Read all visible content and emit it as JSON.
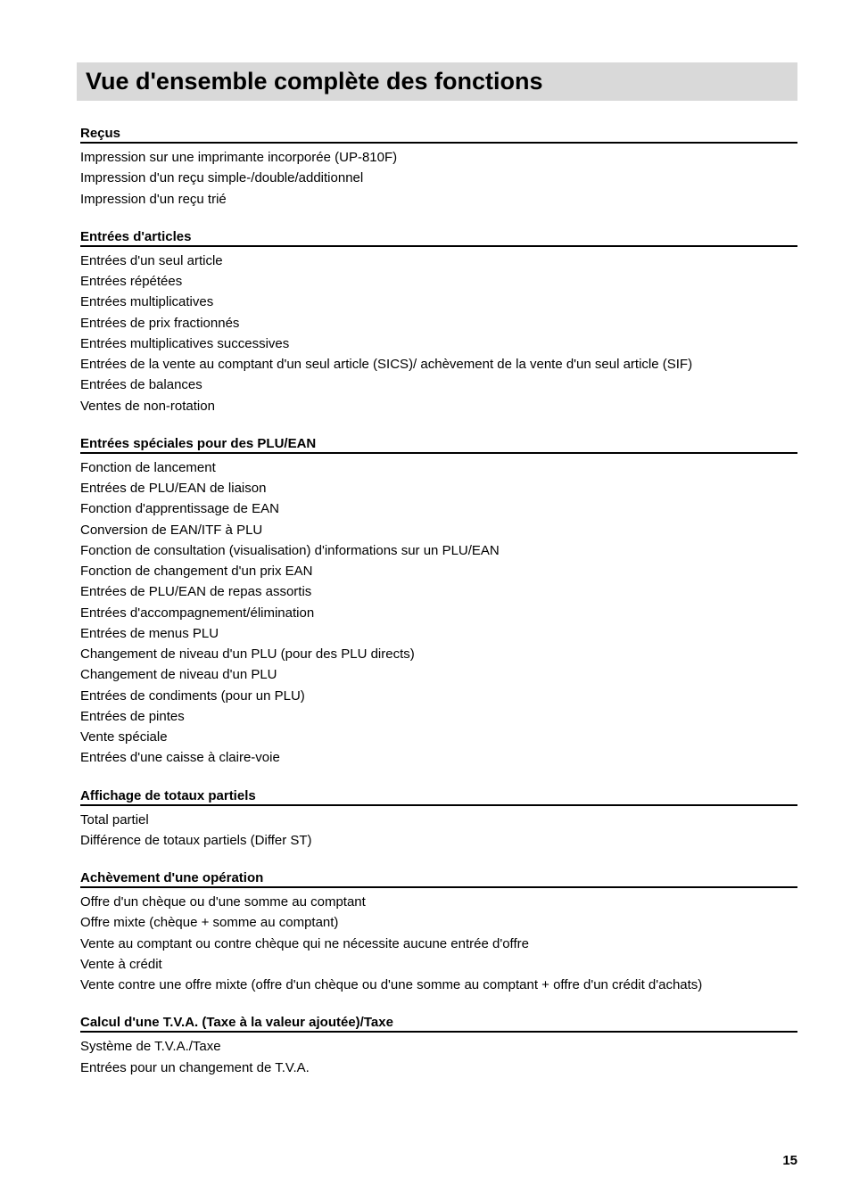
{
  "page_title": "Vue d'ensemble complète des fonctions",
  "page_number": "15",
  "style": {
    "title_bg": "#d9d9d9",
    "title_fontsize": 27,
    "heading_fontsize": 15,
    "body_fontsize": 15,
    "text_color": "#000000",
    "page_bg": "#ffffff",
    "heading_border_color": "#000000",
    "heading_border_width": 2
  },
  "sections": [
    {
      "heading": "Reçus",
      "lines": [
        "Impression sur une imprimante incorporée (UP-810F)",
        "Impression d'un reçu simple-/double/additionnel",
        "Impression d'un reçu trié"
      ]
    },
    {
      "heading": "Entrées d'articles",
      "lines": [
        "Entrées d'un seul article",
        "Entrées répétées",
        "Entrées multiplicatives",
        "Entrées de prix fractionnés",
        "Entrées multiplicatives successives",
        "Entrées de la vente au comptant d'un seul article (SICS)/ achèvement de la vente d'un seul article (SIF)",
        "Entrées de balances",
        "Ventes de non-rotation"
      ]
    },
    {
      "heading": "Entrées spéciales pour des PLU/EAN",
      "lines": [
        "Fonction de lancement",
        "Entrées de PLU/EAN de liaison",
        "Fonction d'apprentissage de EAN",
        "Conversion de EAN/ITF à PLU",
        "Fonction de consultation (visualisation) d'informations sur un PLU/EAN",
        "Fonction de changement d'un prix EAN",
        "Entrées de PLU/EAN de repas assortis",
        "Entrées d'accompagnement/élimination",
        "Entrées de menus PLU",
        "Changement de niveau d'un PLU (pour des PLU directs)",
        "Changement de niveau d'un PLU",
        "Entrées de condiments (pour un PLU)",
        "Entrées de pintes",
        "Vente spéciale",
        "Entrées d'une caisse à claire-voie"
      ]
    },
    {
      "heading": "Affichage de totaux partiels",
      "lines": [
        "Total partiel",
        "Différence de totaux partiels (Differ ST)"
      ]
    },
    {
      "heading": "Achèvement d'une opération",
      "lines": [
        "Offre d'un chèque ou d'une somme au comptant",
        "Offre mixte (chèque + somme au comptant)",
        "Vente au comptant ou contre chèque qui ne nécessite aucune entrée d'offre",
        "Vente à crédit",
        "Vente contre une offre mixte (offre d'un chèque ou d'une somme au comptant + offre d'un crédit d'achats)"
      ]
    },
    {
      "heading": "Calcul d'une T.V.A. (Taxe à la valeur ajoutée)/Taxe",
      "lines": [
        "Système de T.V.A./Taxe",
        "Entrées pour un changement de T.V.A."
      ]
    }
  ]
}
